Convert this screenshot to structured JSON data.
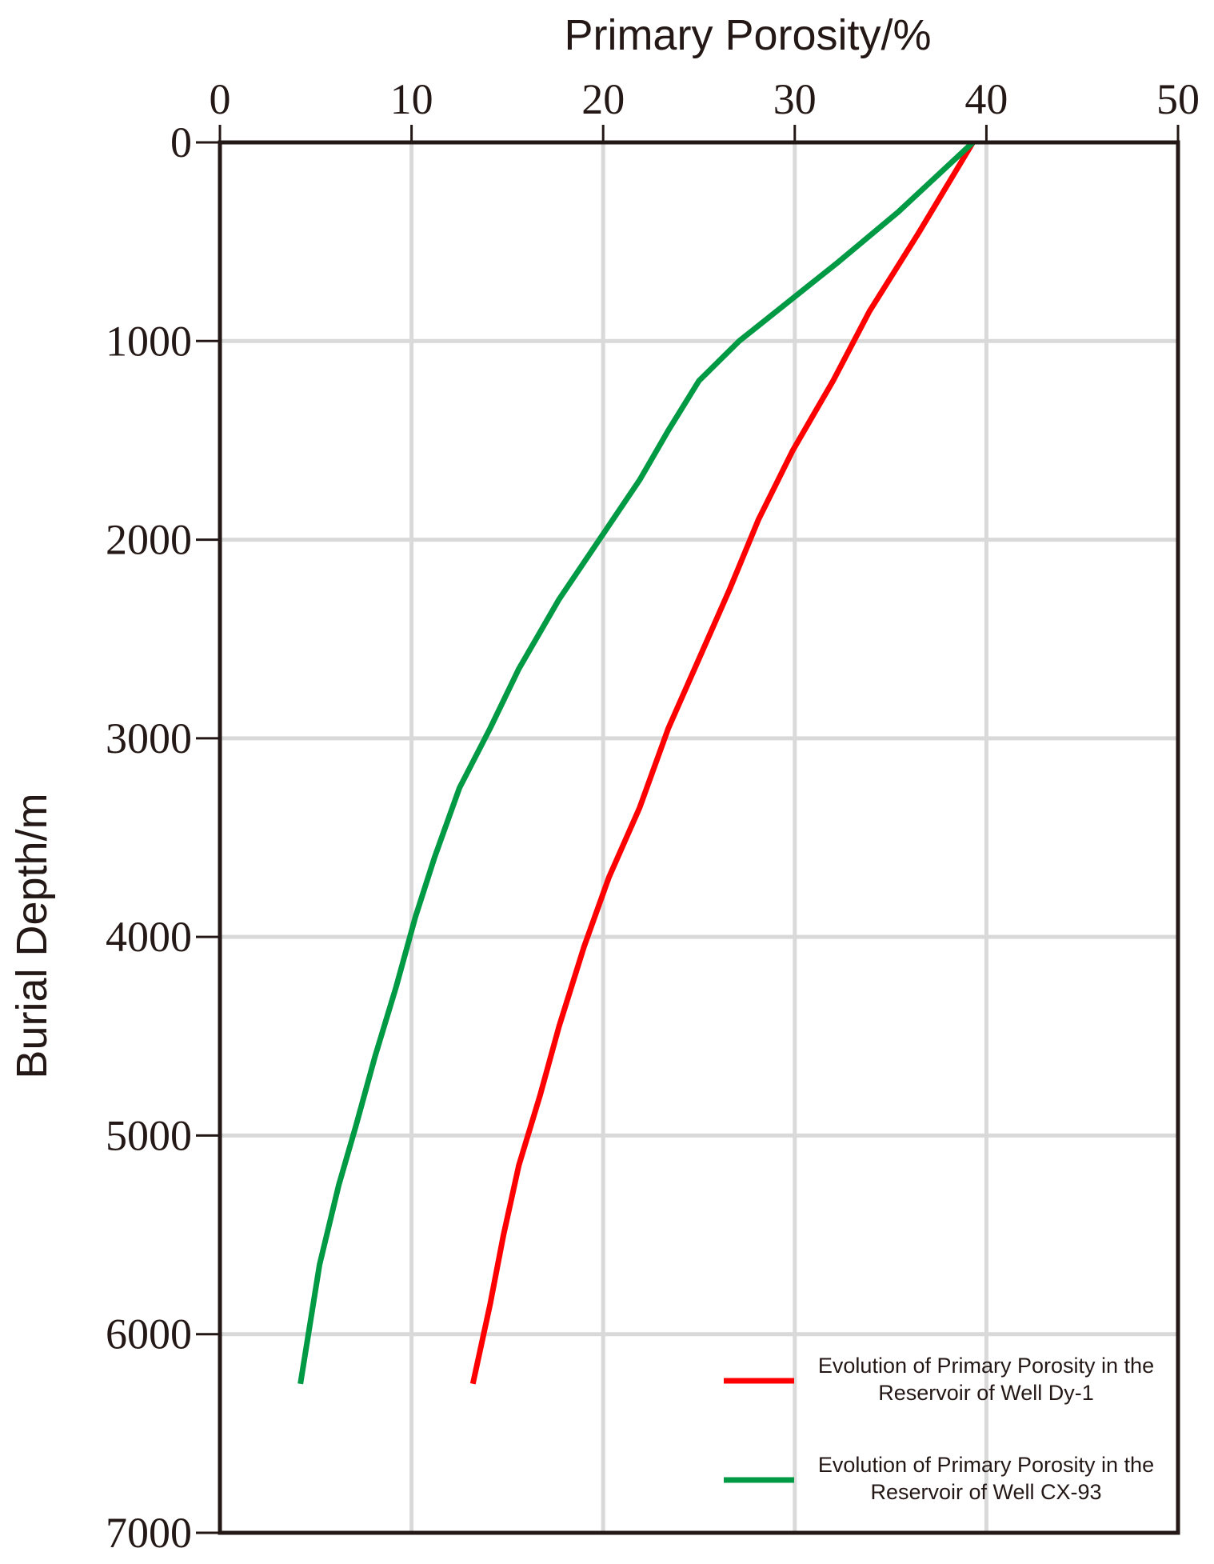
{
  "chart_data": {
    "type": "line",
    "x_label": "Primary Porosity/%",
    "y_label": "Burial Depth/m",
    "xlim": [
      0,
      50
    ],
    "xticks": [
      0,
      10,
      20,
      30,
      40,
      50
    ],
    "ylim": [
      7000,
      0
    ],
    "yticks": [
      0,
      1000,
      2000,
      3000,
      4000,
      5000,
      6000,
      7000
    ],
    "grid": true,
    "legend": "lower right",
    "series": [
      {
        "name": "Evolution of Primary Porosity in the Reservoir of Well Dy-1",
        "color": "#ff0000",
        "x": [
          39.3,
          36.5,
          33.9,
          32.0,
          29.9,
          28.1,
          26.6,
          25.0,
          23.4,
          21.9,
          20.3,
          19.0,
          17.7,
          16.7,
          15.6,
          14.8,
          14.1,
          13.2
        ],
        "values": [
          0,
          450,
          850,
          1200,
          1550,
          1900,
          2250,
          2600,
          2950,
          3350,
          3700,
          4050,
          4450,
          4800,
          5150,
          5500,
          5850,
          6250
        ]
      },
      {
        "name": "Evolution of Primary Porosity in the Reservoir of Well CX-93",
        "color": "#009944",
        "x": [
          39.3,
          35.4,
          32.3,
          29.7,
          27.1,
          25.0,
          23.4,
          21.9,
          19.8,
          17.7,
          15.6,
          14.1,
          12.5,
          11.2,
          10.2,
          9.2,
          8.1,
          7.1,
          6.2,
          5.2,
          4.2
        ],
        "values": [
          0,
          350,
          600,
          800,
          1000,
          1200,
          1450,
          1700,
          2000,
          2300,
          2650,
          2950,
          3250,
          3600,
          3900,
          4250,
          4600,
          4950,
          5250,
          5650,
          6250
        ]
      }
    ]
  }
}
